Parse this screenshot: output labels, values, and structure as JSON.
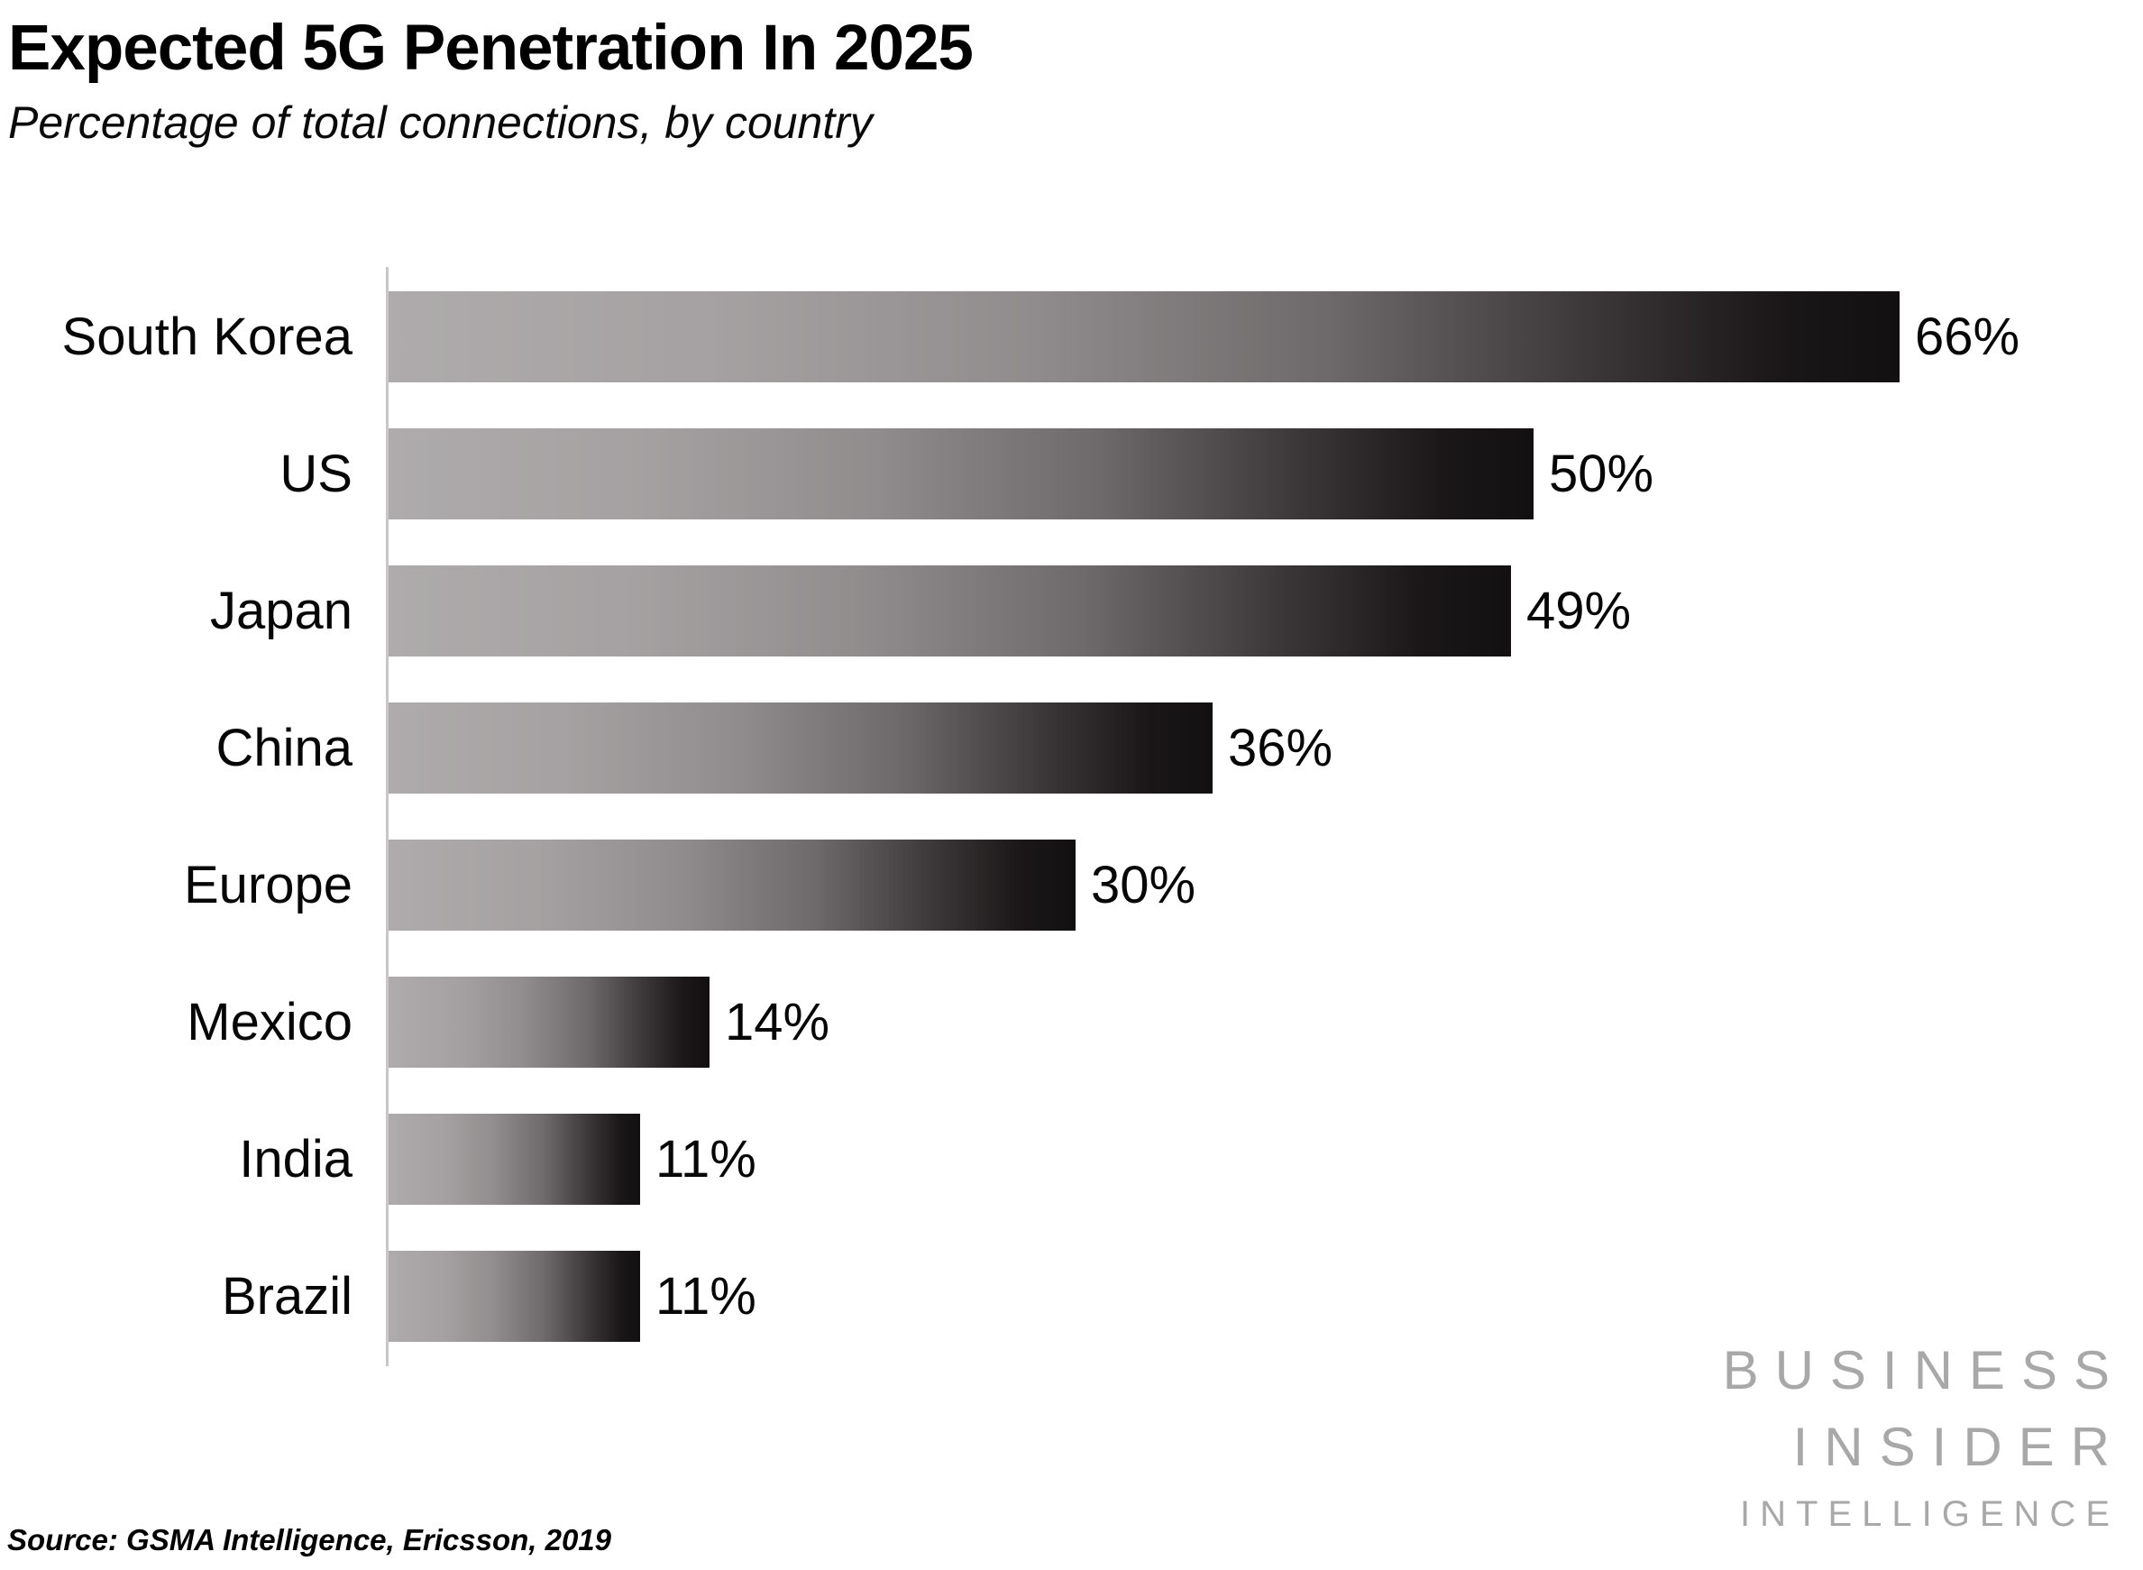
{
  "header": {
    "title": "Expected 5G Penetration In 2025",
    "subtitle": "Percentage of total connections, by country"
  },
  "chart_data": {
    "type": "bar",
    "orientation": "horizontal",
    "title": "Expected 5G Penetration In 2025",
    "subtitle": "Percentage of total connections, by country",
    "categories": [
      "South Korea",
      "US",
      "Japan",
      "China",
      "Europe",
      "Mexico",
      "India",
      "Brazil"
    ],
    "values": [
      66,
      50,
      49,
      36,
      30,
      14,
      11,
      11
    ],
    "value_suffix": "%",
    "xlim": [
      0,
      66
    ],
    "grid": false,
    "legend": false,
    "bar_gradient_start": "#aeabac",
    "bar_gradient_end": "#121010",
    "axis_color": "#c8c6c6"
  },
  "footer": {
    "source": "Source: GSMA Intelligence, Ericsson, 2019"
  },
  "logo": {
    "line1": "BUSINESS",
    "line2": "INSIDER",
    "line3": "INTELLIGENCE",
    "color": "#a9a8a8"
  }
}
